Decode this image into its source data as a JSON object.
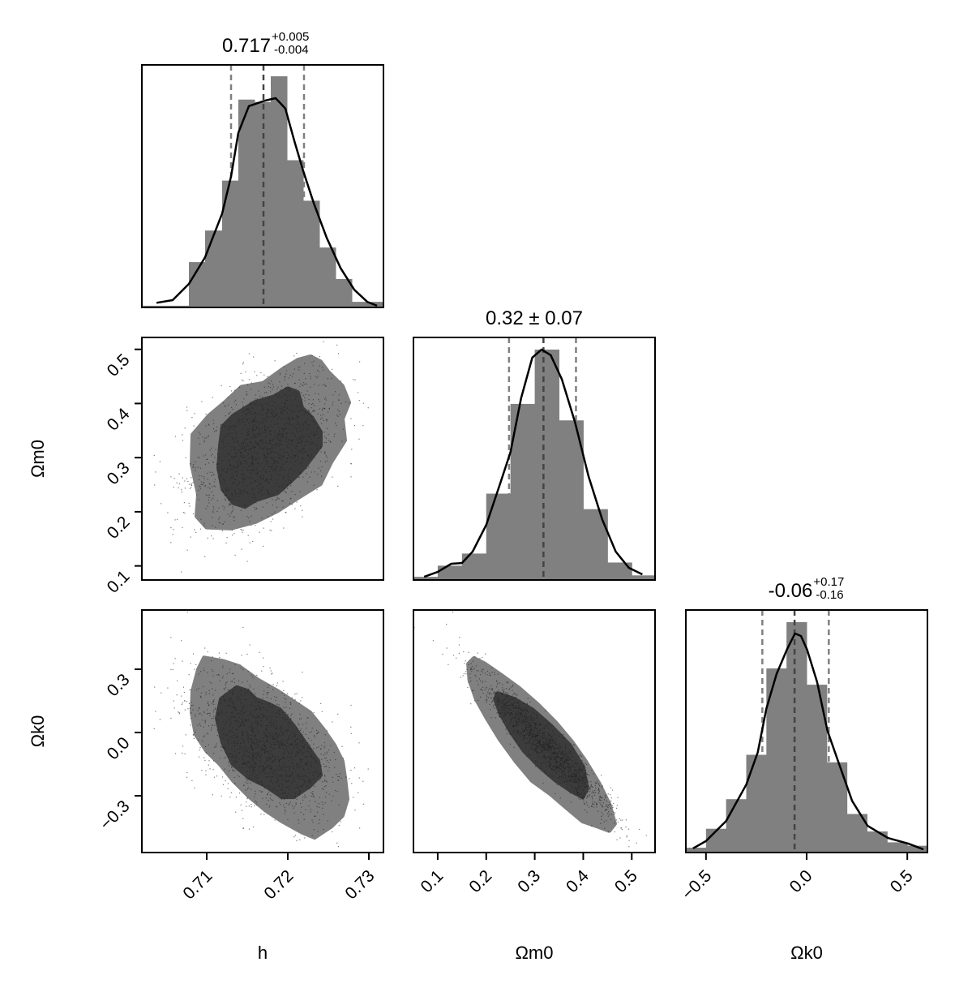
{
  "chart_data": {
    "type": "corner",
    "parameters": [
      {
        "name": "h",
        "label": "h",
        "range": [
          0.702,
          0.7318
        ],
        "ticks": [
          {
            "value": 0.71,
            "label": "0.71"
          },
          {
            "value": 0.72,
            "label": "0.72"
          },
          {
            "value": 0.73,
            "label": "0.73"
          }
        ]
      },
      {
        "name": "Om0",
        "label": "Ωm0",
        "range": [
          0.05,
          0.548
        ],
        "yrange": [
          0.074,
          0.522
        ],
        "ticks": [
          {
            "value": 0.1,
            "label": "0.1"
          },
          {
            "value": 0.2,
            "label": "0.2"
          },
          {
            "value": 0.3,
            "label": "0.3"
          },
          {
            "value": 0.4,
            "label": "0.4"
          },
          {
            "value": 0.5,
            "label": "0.5"
          }
        ]
      },
      {
        "name": "Ok0",
        "label": "Ωk0",
        "range": [
          -0.6,
          0.6
        ],
        "yrange": [
          -0.569,
          0.581
        ],
        "ticks": [
          {
            "value": -0.5,
            "label": "−0.5"
          },
          {
            "value": 0.0,
            "label": "0.0"
          },
          {
            "value": 0.5,
            "label": "0.5"
          }
        ],
        "yticks": [
          {
            "value": 0.3,
            "label": "0.3"
          },
          {
            "value": 0.0,
            "label": "0.0"
          },
          {
            "value": -0.3,
            "label": "−0.3"
          }
        ]
      }
    ],
    "marginals": [
      {
        "param": 0,
        "title": {
          "value": "0.717",
          "plus": "+0.005",
          "minus": "-0.004"
        },
        "quantiles": [
          0.713,
          0.717,
          0.722
        ],
        "bin_edges": [
          0.702,
          0.7078,
          0.7098,
          0.7119,
          0.7139,
          0.7159,
          0.7179,
          0.7199,
          0.7219,
          0.7239,
          0.7259,
          0.7279,
          0.7318
        ],
        "heights": [
          0.007,
          0.187,
          0.317,
          0.523,
          0.857,
          0.847,
          0.953,
          0.607,
          0.44,
          0.247,
          0.117,
          0.023
        ],
        "kde_x": [
          0.7038,
          0.7058,
          0.7078,
          0.7098,
          0.7119,
          0.713,
          0.7139,
          0.7152,
          0.7172,
          0.7185,
          0.7197,
          0.7208,
          0.7219,
          0.7232,
          0.7248,
          0.7265,
          0.7282,
          0.7298,
          0.731
        ],
        "kde_y": [
          0.019,
          0.03,
          0.097,
          0.207,
          0.387,
          0.54,
          0.72,
          0.83,
          0.853,
          0.863,
          0.82,
          0.687,
          0.563,
          0.43,
          0.287,
          0.163,
          0.073,
          0.023,
          0.007
        ]
      },
      {
        "param": 1,
        "title": {
          "value": "0.32 ± 0.07"
        },
        "quantiles": [
          0.247,
          0.318,
          0.385
        ],
        "bin_edges": [
          0.05,
          0.1,
          0.15,
          0.2,
          0.25,
          0.3,
          0.35,
          0.4,
          0.45,
          0.5,
          0.55
        ],
        "heights": [
          0.013,
          0.059,
          0.109,
          0.356,
          0.726,
          0.95,
          0.658,
          0.292,
          0.072,
          0.019
        ],
        "kde_x": [
          0.072,
          0.1,
          0.128,
          0.15,
          0.172,
          0.2,
          0.228,
          0.25,
          0.272,
          0.295,
          0.314,
          0.333,
          0.356,
          0.383,
          0.411,
          0.439,
          0.467,
          0.494,
          0.522
        ],
        "kde_y": [
          0.013,
          0.033,
          0.067,
          0.07,
          0.117,
          0.227,
          0.393,
          0.527,
          0.75,
          0.917,
          0.95,
          0.927,
          0.827,
          0.65,
          0.427,
          0.25,
          0.117,
          0.05,
          0.023
        ]
      },
      {
        "param": 2,
        "title": {
          "value": "-0.06",
          "plus": "+0.17",
          "minus": "-0.16"
        },
        "quantiles": [
          -0.22,
          -0.06,
          0.11
        ],
        "bin_edges": [
          -0.6,
          -0.5,
          -0.4,
          -0.3,
          -0.2,
          -0.1,
          0.0,
          0.1,
          0.2,
          0.3,
          0.4,
          0.5,
          0.6
        ],
        "heights": [
          0.02,
          0.098,
          0.22,
          0.403,
          0.759,
          0.95,
          0.692,
          0.372,
          0.159,
          0.087,
          0.042,
          0.028
        ],
        "kde_x": [
          -0.564,
          -0.5,
          -0.4,
          -0.3,
          -0.243,
          -0.2,
          -0.149,
          -0.098,
          -0.058,
          -0.028,
          0.002,
          0.052,
          0.103,
          0.159,
          0.226,
          0.303,
          0.404,
          0.504,
          0.58
        ],
        "kde_y": [
          0.017,
          0.047,
          0.13,
          0.28,
          0.413,
          0.593,
          0.737,
          0.837,
          0.903,
          0.893,
          0.837,
          0.703,
          0.503,
          0.37,
          0.213,
          0.11,
          0.06,
          0.037,
          0.013
        ]
      }
    ],
    "joint": [
      {
        "x": 0,
        "y": 1,
        "contour_outer": [
          [
            0.7228,
            0.486
          ],
          [
            0.724,
            0.477
          ],
          [
            0.725,
            0.457
          ],
          [
            0.7267,
            0.432
          ],
          [
            0.7275,
            0.402
          ],
          [
            0.7267,
            0.372
          ],
          [
            0.727,
            0.332
          ],
          [
            0.7253,
            0.292
          ],
          [
            0.724,
            0.252
          ],
          [
            0.7213,
            0.227
          ],
          [
            0.7187,
            0.202
          ],
          [
            0.716,
            0.182
          ],
          [
            0.713,
            0.17
          ],
          [
            0.71,
            0.172
          ],
          [
            0.7088,
            0.192
          ],
          [
            0.709,
            0.232
          ],
          [
            0.7082,
            0.287
          ],
          [
            0.7083,
            0.342
          ],
          [
            0.7103,
            0.377
          ],
          [
            0.7123,
            0.402
          ],
          [
            0.7143,
            0.43
          ],
          [
            0.717,
            0.437
          ],
          [
            0.7193,
            0.462
          ],
          [
            0.7213,
            0.48
          ]
        ],
        "contour_inner": [
          [
            0.72,
            0.427
          ],
          [
            0.7212,
            0.42
          ],
          [
            0.7217,
            0.392
          ],
          [
            0.723,
            0.372
          ],
          [
            0.724,
            0.347
          ],
          [
            0.724,
            0.322
          ],
          [
            0.723,
            0.302
          ],
          [
            0.722,
            0.282
          ],
          [
            0.7207,
            0.262
          ],
          [
            0.7187,
            0.235
          ],
          [
            0.716,
            0.222
          ],
          [
            0.7147,
            0.21
          ],
          [
            0.7133,
            0.217
          ],
          [
            0.712,
            0.242
          ],
          [
            0.7115,
            0.282
          ],
          [
            0.7117,
            0.322
          ],
          [
            0.712,
            0.357
          ],
          [
            0.7133,
            0.377
          ],
          [
            0.716,
            0.402
          ],
          [
            0.7183,
            0.412
          ]
        ]
      },
      {
        "x": 0,
        "y": 2,
        "contour_outer": [
          [
            0.7097,
            0.353
          ],
          [
            0.712,
            0.337
          ],
          [
            0.714,
            0.312
          ],
          [
            0.7163,
            0.248
          ],
          [
            0.7187,
            0.196
          ],
          [
            0.7207,
            0.145
          ],
          [
            0.7227,
            0.094
          ],
          [
            0.7243,
            0.017
          ],
          [
            0.7257,
            -0.06
          ],
          [
            0.7267,
            -0.137
          ],
          [
            0.727,
            -0.214
          ],
          [
            0.7273,
            -0.316
          ],
          [
            0.7267,
            -0.393
          ],
          [
            0.7253,
            -0.445
          ],
          [
            0.7233,
            -0.496
          ],
          [
            0.7217,
            -0.47
          ],
          [
            0.7193,
            -0.419
          ],
          [
            0.7173,
            -0.368
          ],
          [
            0.7153,
            -0.304
          ],
          [
            0.7133,
            -0.227
          ],
          [
            0.7117,
            -0.15
          ],
          [
            0.71,
            -0.086
          ],
          [
            0.7087,
            -0.009
          ],
          [
            0.7082,
            0.094
          ],
          [
            0.7083,
            0.196
          ],
          [
            0.709,
            0.299
          ]
        ],
        "contour_inner": [
          [
            0.7137,
            0.212
          ],
          [
            0.715,
            0.196
          ],
          [
            0.716,
            0.158
          ],
          [
            0.7177,
            0.132
          ],
          [
            0.719,
            0.107
          ],
          [
            0.7207,
            0.03
          ],
          [
            0.7223,
            -0.06
          ],
          [
            0.7237,
            -0.137
          ],
          [
            0.724,
            -0.201
          ],
          [
            0.7227,
            -0.252
          ],
          [
            0.7207,
            -0.304
          ],
          [
            0.7193,
            -0.304
          ],
          [
            0.7173,
            -0.252
          ],
          [
            0.7153,
            -0.214
          ],
          [
            0.7133,
            -0.15
          ],
          [
            0.712,
            -0.047
          ],
          [
            0.7113,
            0.068
          ],
          [
            0.7118,
            0.158
          ]
        ]
      },
      {
        "x": 1,
        "y": 2,
        "contour_outer": [
          [
            0.1747,
            0.35
          ],
          [
            0.1965,
            0.325
          ],
          [
            0.2293,
            0.273
          ],
          [
            0.2676,
            0.209
          ],
          [
            0.3058,
            0.132
          ],
          [
            0.3441,
            0.043
          ],
          [
            0.3769,
            -0.047
          ],
          [
            0.4042,
            -0.137
          ],
          [
            0.4315,
            -0.24
          ],
          [
            0.4534,
            -0.342
          ],
          [
            0.4643,
            -0.432
          ],
          [
            0.4534,
            -0.464
          ],
          [
            0.4315,
            -0.445
          ],
          [
            0.3987,
            -0.419
          ],
          [
            0.3659,
            -0.355
          ],
          [
            0.3332,
            -0.291
          ],
          [
            0.2949,
            -0.227
          ],
          [
            0.2621,
            -0.137
          ],
          [
            0.2293,
            -0.034
          ],
          [
            0.202,
            0.068
          ],
          [
            0.1802,
            0.158
          ],
          [
            0.1665,
            0.248
          ],
          [
            0.1638,
            0.325
          ]
        ],
        "contour_inner": [
          [
            0.2239,
            0.184
          ],
          [
            0.2567,
            0.158
          ],
          [
            0.2949,
            0.107
          ],
          [
            0.3332,
            0.03
          ],
          [
            0.3714,
            -0.06
          ],
          [
            0.3987,
            -0.163
          ],
          [
            0.4069,
            -0.265
          ],
          [
            0.3987,
            -0.304
          ],
          [
            0.3769,
            -0.278
          ],
          [
            0.3441,
            -0.227
          ],
          [
            0.3113,
            -0.163
          ],
          [
            0.2785,
            -0.086
          ],
          [
            0.2512,
            0.004
          ],
          [
            0.2293,
            0.094
          ],
          [
            0.2195,
            0.158
          ]
        ]
      }
    ],
    "colors": {
      "hist": "#808080",
      "contour_outer": "#808080",
      "contour_inner": "#3c3c3c",
      "kde": "#000000",
      "quantile_outer": "#808080",
      "quantile_median": "#444444",
      "points": "#222222"
    }
  }
}
